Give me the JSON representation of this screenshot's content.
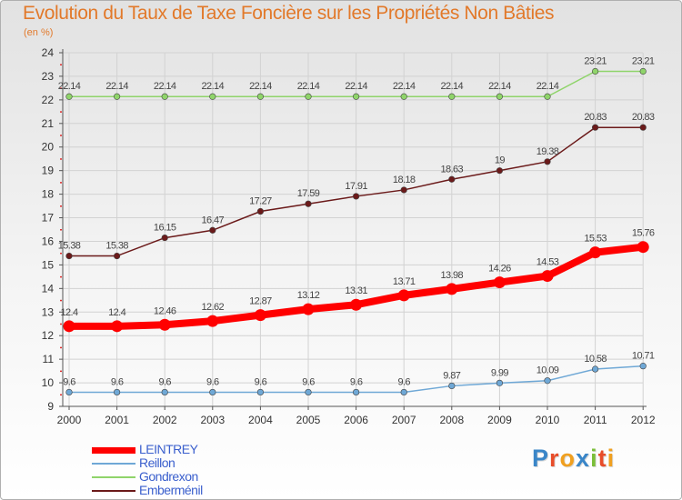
{
  "chart_data": {
    "type": "line",
    "title": "Evolution du Taux de Taxe Foncière sur les Propriétés Non Bâties",
    "ylabel": "(en %)",
    "xlabel": "",
    "ylim": [
      9,
      24
    ],
    "yticks": [
      "9",
      "10",
      "11",
      "12",
      "13",
      "14",
      "15",
      "16",
      "17",
      "18",
      "19",
      "20",
      "21",
      "22",
      "23",
      "24"
    ],
    "x": [
      "2000",
      "2001",
      "2002",
      "2003",
      "2004",
      "2005",
      "2006",
      "2007",
      "2008",
      "2009",
      "2010",
      "2011",
      "2012"
    ],
    "series": [
      {
        "name": "LEINTREY",
        "color": "#ff0000",
        "highlight": true,
        "values": [
          12.4,
          12.4,
          12.46,
          12.62,
          12.87,
          13.12,
          13.31,
          13.71,
          13.98,
          14.26,
          14.53,
          15.53,
          15.76
        ],
        "labels": [
          "12.4",
          "12.4",
          "12.46",
          "12.62",
          "12.87",
          "13.12",
          "13.31",
          "13.71",
          "13.98",
          "14.26",
          "14.53",
          "15.53",
          "15.76"
        ]
      },
      {
        "name": "Reillon",
        "color": "#6fa8d6",
        "values": [
          9.6,
          9.6,
          9.6,
          9.6,
          9.6,
          9.6,
          9.6,
          9.6,
          9.87,
          9.99,
          10.09,
          10.58,
          10.71
        ],
        "labels": [
          "9.6",
          "9.6",
          "9.6",
          "9.6",
          "9.6",
          "9.6",
          "9.6",
          "9.6",
          "9.87",
          "9.99",
          "10.09",
          "10.58",
          "10.71"
        ]
      },
      {
        "name": "Gondrexon",
        "color": "#8fd46a",
        "values": [
          22.14,
          22.14,
          22.14,
          22.14,
          22.14,
          22.14,
          22.14,
          22.14,
          22.14,
          22.14,
          22.14,
          23.21,
          23.21
        ],
        "labels": [
          "22.14",
          "22.14",
          "22.14",
          "22.14",
          "22.14",
          "22.14",
          "22.14",
          "22.14",
          "22.14",
          "22.14",
          "22.14",
          "23.21",
          "23.21"
        ]
      },
      {
        "name": "Emberménil",
        "color": "#6b1a1a",
        "values": [
          15.38,
          15.38,
          16.15,
          16.47,
          17.27,
          17.59,
          17.91,
          18.18,
          18.63,
          19,
          19.38,
          20.83,
          20.83
        ],
        "labels": [
          "15.38",
          "15.38",
          "16.15",
          "16.47",
          "17.27",
          "17.59",
          "17.91",
          "18.18",
          "18.63",
          "19",
          "19.38",
          "20.83",
          "20.83"
        ]
      }
    ],
    "legend_position": "bottom-left",
    "grid": true
  },
  "logo": {
    "text": "Proxiti",
    "letters": [
      "P",
      "r",
      "o",
      "x",
      "i",
      "t",
      "i"
    ],
    "colors": [
      "#3a86c8",
      "#e84d2a",
      "#f0a020",
      "#3a86c8",
      "#7bbf3a",
      "#e84d2a",
      "#f0a020"
    ]
  }
}
